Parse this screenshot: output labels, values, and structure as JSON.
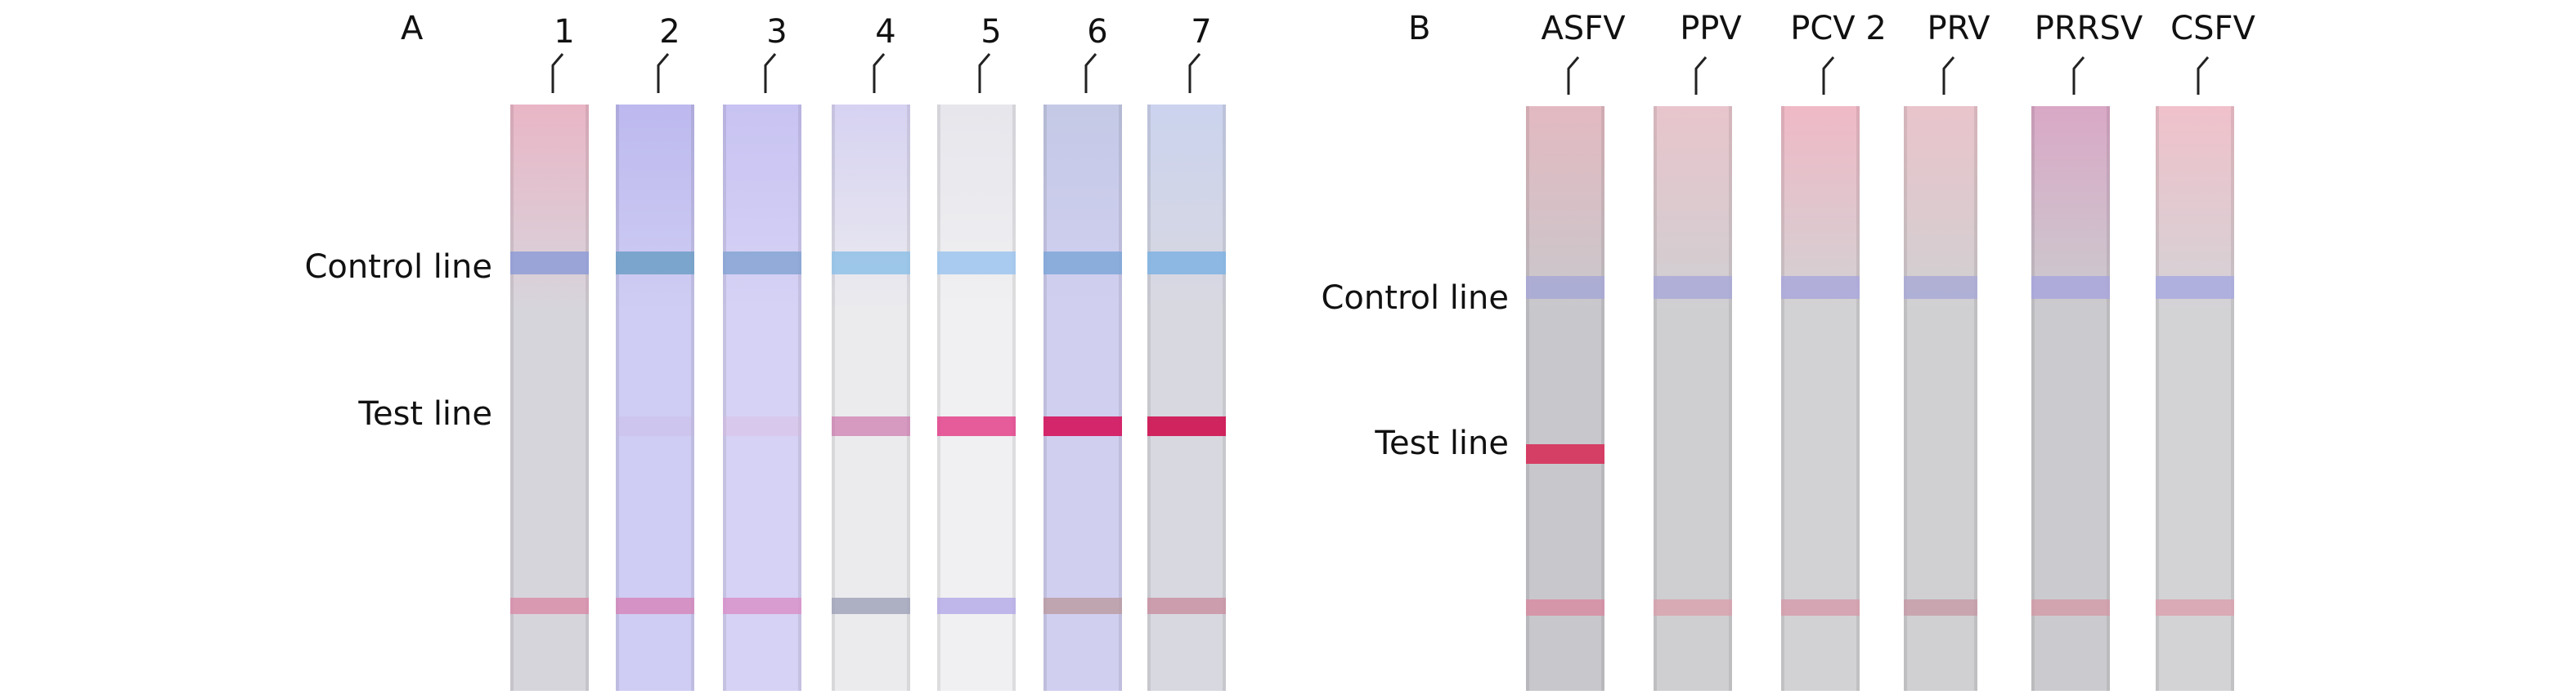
{
  "panels": [
    {
      "label": "A",
      "row_labels": {
        "control": "Control line",
        "test": "Test line"
      },
      "strips": [
        {
          "label": "1",
          "background": "#d7d5dc",
          "tint": "#e9b6c6",
          "control_color": "#8e9cd6",
          "test_color": "#d2d0d8",
          "test_intensity": 0.0,
          "sample_pad_color": "#d98aa6"
        },
        {
          "label": "2",
          "background": "#cfcdf3",
          "tint": "#bdb9ef",
          "control_color": "#6f9fc7",
          "test_color": "#c9b6e2",
          "test_intensity": 0.12,
          "sample_pad_color": "#d584b8"
        },
        {
          "label": "3",
          "background": "#d6d2f5",
          "tint": "#c8c3f2",
          "control_color": "#86a4d2",
          "test_color": "#d9b6dc",
          "test_intensity": 0.18,
          "sample_pad_color": "#d98fc8"
        },
        {
          "label": "4",
          "background": "#ebebee",
          "tint": "#d6d2f2",
          "control_color": "#8fc1e6",
          "test_color": "#c96aa6",
          "test_intensity": 0.55,
          "sample_pad_color": "#9ea0b6"
        },
        {
          "label": "5",
          "background": "#f0f0f2",
          "tint": "#e6e6ec",
          "control_color": "#9cc4ee",
          "test_color": "#e33a86",
          "test_intensity": 0.82,
          "sample_pad_color": "#b3a8e6"
        },
        {
          "label": "6",
          "background": "#d1cff0",
          "tint": "#c4c9e6",
          "control_color": "#7fa7d8",
          "test_color": "#d41e63",
          "test_intensity": 1.0,
          "sample_pad_color": "#b99aa0"
        },
        {
          "label": "7",
          "background": "#d8d8e0",
          "tint": "#cbd3ee",
          "control_color": "#7fb3e3",
          "test_color": "#d01a56",
          "test_intensity": 1.0,
          "sample_pad_color": "#c98fa0"
        }
      ]
    },
    {
      "label": "B",
      "row_labels": {
        "control": "Control line",
        "test": "Test line"
      },
      "strips": [
        {
          "label": "ASFV",
          "background": "#c8c8cc",
          "tint": "#e3b9c1",
          "control_color": "#a7a8d6",
          "test_color": "#d6375f",
          "test_intensity": 1.0,
          "sample_pad_color": "#d98aa0"
        },
        {
          "label": "PPV",
          "background": "#cfcfd2",
          "tint": "#e8c5cc",
          "control_color": "#a9a9d8",
          "test_color": "#cfcfd2",
          "test_intensity": 0.0,
          "sample_pad_color": "#d9a0ac"
        },
        {
          "label": "PCV 2",
          "background": "#d2d2d4",
          "tint": "#efb9c6",
          "control_color": "#aaa8dc",
          "test_color": "#d2d2d4",
          "test_intensity": 0.0,
          "sample_pad_color": "#d69aaa"
        },
        {
          "label": "PRV",
          "background": "#d0d0d2",
          "tint": "#e9c4cb",
          "control_color": "#a9aad6",
          "test_color": "#d0d0d2",
          "test_intensity": 0.0,
          "sample_pad_color": "#c79aa6"
        },
        {
          "label": "PRRSV",
          "background": "#cbcbcf",
          "tint": "#d9a8c6",
          "control_color": "#a8a6dc",
          "test_color": "#cbcbcf",
          "test_intensity": 0.0,
          "sample_pad_color": "#d39aa8"
        },
        {
          "label": "CSFV",
          "background": "#d3d3d6",
          "tint": "#f0c1cb",
          "control_color": "#a9aadf",
          "test_color": "#d3d3d6",
          "test_intensity": 0.0,
          "sample_pad_color": "#dca0ae"
        }
      ]
    }
  ]
}
